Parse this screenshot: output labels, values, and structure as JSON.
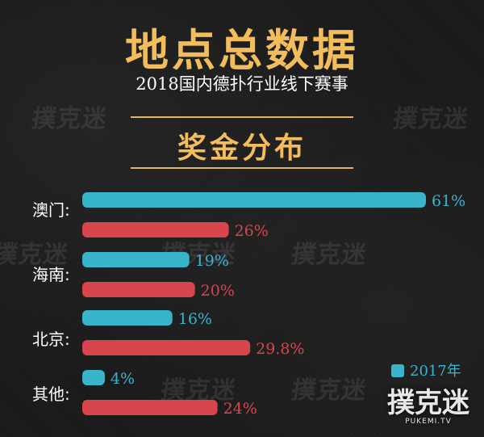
{
  "header": {
    "title": "地点总数据",
    "subtitle": "2018国内德扑行业线下赛事",
    "section_title": "奖金分布"
  },
  "watermark": "撲克迷",
  "logo": {
    "text": "撲克迷",
    "sub": "PUKEMI.TV"
  },
  "colors": {
    "s2017": "#38b4cb",
    "s2018": "#d8464d",
    "accent": "#f2bd5a",
    "legend_2017_text": "#38b4cb"
  },
  "chart_data": {
    "type": "bar",
    "orientation": "horizontal",
    "title": "奖金分布",
    "categories": [
      "澳门:",
      "海南:",
      "北京:",
      "其他:"
    ],
    "series": [
      {
        "name": "2017年",
        "values": [
          61,
          19,
          16,
          4
        ],
        "labels": [
          "61%",
          "19%",
          "16%",
          "4%"
        ]
      },
      {
        "name": "",
        "values": [
          26,
          20,
          29.8,
          24
        ],
        "labels": [
          "26%",
          "20%",
          "29.8%",
          "24%"
        ]
      }
    ],
    "xlim": [
      0,
      61
    ],
    "unit": "%",
    "grid": false,
    "legend_position": "bottom-right"
  }
}
